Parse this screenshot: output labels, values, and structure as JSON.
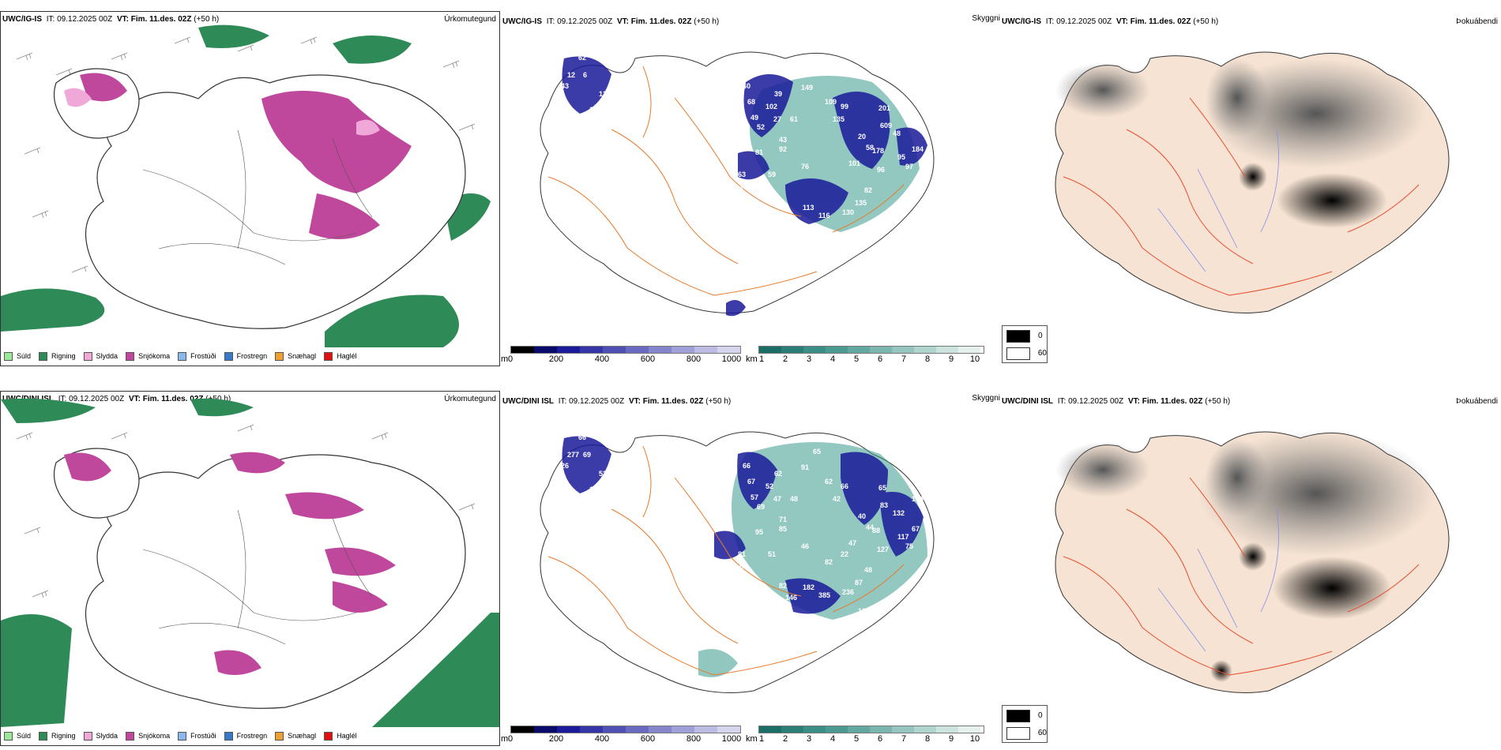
{
  "rows": [
    {
      "model": "UWC/IG-IS",
      "it_label": "IT:",
      "it_value": "09.12.2025 00Z",
      "vt_label": "VT:",
      "vt_value": "Fim. 11.des. 02Z",
      "lead": "(+50 h)",
      "labels": [
        "60",
        "68",
        "39",
        "102",
        "27",
        "149",
        "190",
        "109",
        "99",
        "135",
        "61",
        "49",
        "52",
        "43",
        "92",
        "81",
        "59",
        "184",
        "88",
        "97",
        "113",
        "116",
        "130",
        "135",
        "74",
        "82",
        "20",
        "58",
        "101",
        "178",
        "96",
        "609",
        "201",
        "48",
        "95",
        "97",
        "184",
        "80",
        "62",
        "6",
        "12",
        "43",
        "121",
        "13",
        "78",
        "35",
        "63",
        "76"
      ]
    },
    {
      "model": "UWC/DINI ISL",
      "it_label": "IT:",
      "it_value": "09.12.2025 00Z",
      "vt_label": "VT:",
      "vt_value": "Fim. 11.des. 02Z",
      "lead": "(+50 h)",
      "labels": [
        "66",
        "67",
        "62",
        "52",
        "47",
        "91",
        "65",
        "62",
        "66",
        "42",
        "48",
        "57",
        "69",
        "71",
        "85",
        "95",
        "51",
        "54",
        "76",
        "82",
        "182",
        "385",
        "236",
        "87",
        "106",
        "48",
        "40",
        "44",
        "47",
        "88",
        "127",
        "83",
        "65",
        "132",
        "117",
        "75",
        "67",
        "174",
        "66",
        "69",
        "277",
        "26",
        "52",
        "133",
        "96",
        "99",
        "81",
        "46",
        "82",
        "22",
        "146"
      ]
    }
  ],
  "precip": {
    "panel_label": "Úrkomutegund",
    "legend": [
      {
        "label": "Súld",
        "color": "#9be89b"
      },
      {
        "label": "Rigning",
        "color": "#2e8b57"
      },
      {
        "label": "Slydda",
        "color": "#f0a8d8"
      },
      {
        "label": "Snjókoma",
        "color": "#c0489c"
      },
      {
        "label": "Frostúði",
        "color": "#8ab8ec"
      },
      {
        "label": "Frostregn",
        "color": "#3878c8"
      },
      {
        "label": "Snæhagl",
        "color": "#f0a030"
      },
      {
        "label": "Haglél",
        "color": "#e01010"
      }
    ]
  },
  "ceiling": {
    "panel_label": "Skyggni",
    "height_unit": "m",
    "height_ticks": [
      "0",
      "200",
      "400",
      "600",
      "800",
      "1000"
    ],
    "vis_unit": "km",
    "vis_ticks": [
      "1",
      "2",
      "3",
      "4",
      "5",
      "6",
      "7",
      "8",
      "9",
      "10"
    ]
  },
  "fog": {
    "panel_label": "Þokuábendi",
    "legend_black": "0",
    "legend_white": "60"
  },
  "colors": {
    "ocean": "#ffffff",
    "land_fog": "#f6e3d3",
    "roads": "#e87a2c",
    "roads_fog": "#e85030",
    "rivers": "#8090f0",
    "rain": "#2e8b57",
    "snow": "#c0489c",
    "low_cloud_dark": "#1a1a9a",
    "low_cloud_teal": "#3a9a8e"
  }
}
